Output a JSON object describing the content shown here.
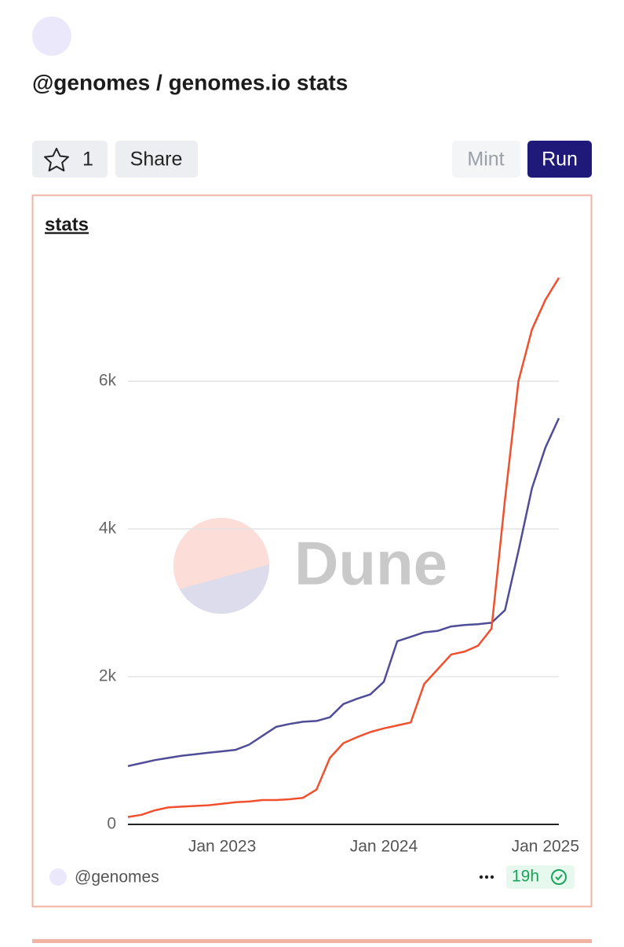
{
  "header": {
    "title": "@genomes / genomes.io stats",
    "star_count": "1",
    "share": "Share",
    "mint": "Mint",
    "run": "Run"
  },
  "chart_data": {
    "type": "line",
    "title": "stats",
    "watermark": "Dune",
    "x": [
      "2022-06",
      "2022-07",
      "2022-08",
      "2022-09",
      "2022-10",
      "2022-11",
      "2022-12",
      "2023-01",
      "2023-02",
      "2023-03",
      "2023-04",
      "2023-05",
      "2023-06",
      "2023-07",
      "2023-08",
      "2023-09",
      "2023-10",
      "2023-11",
      "2023-12",
      "2024-01",
      "2024-02",
      "2024-03",
      "2024-04",
      "2024-05",
      "2024-06",
      "2024-07",
      "2024-08",
      "2024-09",
      "2024-10",
      "2024-11",
      "2024-12",
      "2025-01",
      "2025-02"
    ],
    "series": [
      {
        "color": "#4f4c98",
        "values": [
          790,
          830,
          870,
          900,
          930,
          950,
          970,
          990,
          1010,
          1080,
          1200,
          1320,
          1360,
          1390,
          1400,
          1450,
          1630,
          1700,
          1760,
          1930,
          2480,
          2540,
          2600,
          2620,
          2680,
          2700,
          2710,
          2730,
          2900,
          3700,
          4550,
          5100,
          5500
        ]
      },
      {
        "color": "#f0502d",
        "values": [
          100,
          130,
          190,
          230,
          240,
          250,
          260,
          280,
          300,
          310,
          330,
          330,
          340,
          360,
          470,
          900,
          1100,
          1180,
          1250,
          1300,
          1340,
          1380,
          1900,
          2100,
          2300,
          2340,
          2420,
          2650,
          4400,
          6000,
          6700,
          7100,
          7400
        ]
      }
    ],
    "xlim": [
      "2022-06",
      "2025-02"
    ],
    "xticks": [
      {
        "value": "2023-01",
        "label": "Jan 2023"
      },
      {
        "value": "2024-01",
        "label": "Jan 2024"
      },
      {
        "value": "2025-01",
        "label": "Jan 2025"
      }
    ],
    "ylim": [
      0,
      7650
    ],
    "yticks": [
      0,
      {
        "value": 2000,
        "label": "2k"
      },
      {
        "value": 4000,
        "label": "4k"
      },
      {
        "value": 6000,
        "label": "6k"
      }
    ],
    "grid": true
  },
  "footer": {
    "author": "@genomes",
    "age": "19h"
  }
}
